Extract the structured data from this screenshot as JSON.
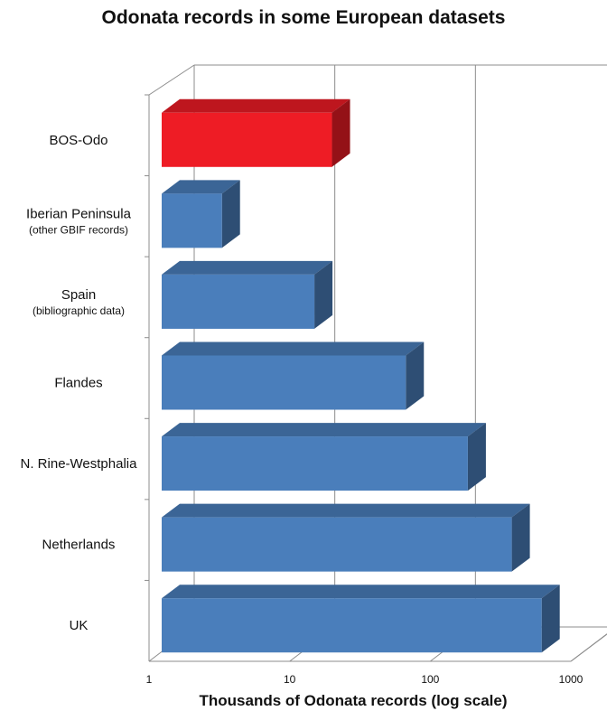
{
  "chart_data": {
    "type": "bar",
    "orientation": "horizontal",
    "title": "Odonata records in some European datasets",
    "xlabel": "Thousands of Odonata records (log scale)",
    "ylabel": "",
    "x_scale": "log",
    "xlim": [
      1,
      1000
    ],
    "x_ticks": [
      "1",
      "10",
      "100",
      "1000"
    ],
    "grid": true,
    "three_d": true,
    "categories": [
      {
        "label": "BOS-Odo",
        "sublabel": "",
        "value": 20,
        "color": "#ee1c25"
      },
      {
        "label": "Iberian Peninsula",
        "sublabel": "(other GBIF records)",
        "value": 3.3,
        "color": "#4a7ebb"
      },
      {
        "label": "Spain",
        "sublabel": "(bibliographic data)",
        "value": 15,
        "color": "#4a7ebb"
      },
      {
        "label": "Flandes",
        "sublabel": "",
        "value": 67,
        "color": "#4a7ebb"
      },
      {
        "label": "N. Rine-Westphalia",
        "sublabel": "",
        "value": 185,
        "color": "#4a7ebb"
      },
      {
        "label": "Netherlands",
        "sublabel": "",
        "value": 380,
        "color": "#4a7ebb"
      },
      {
        "label": "UK",
        "sublabel": "",
        "value": 620,
        "color": "#4a7ebb"
      }
    ]
  }
}
